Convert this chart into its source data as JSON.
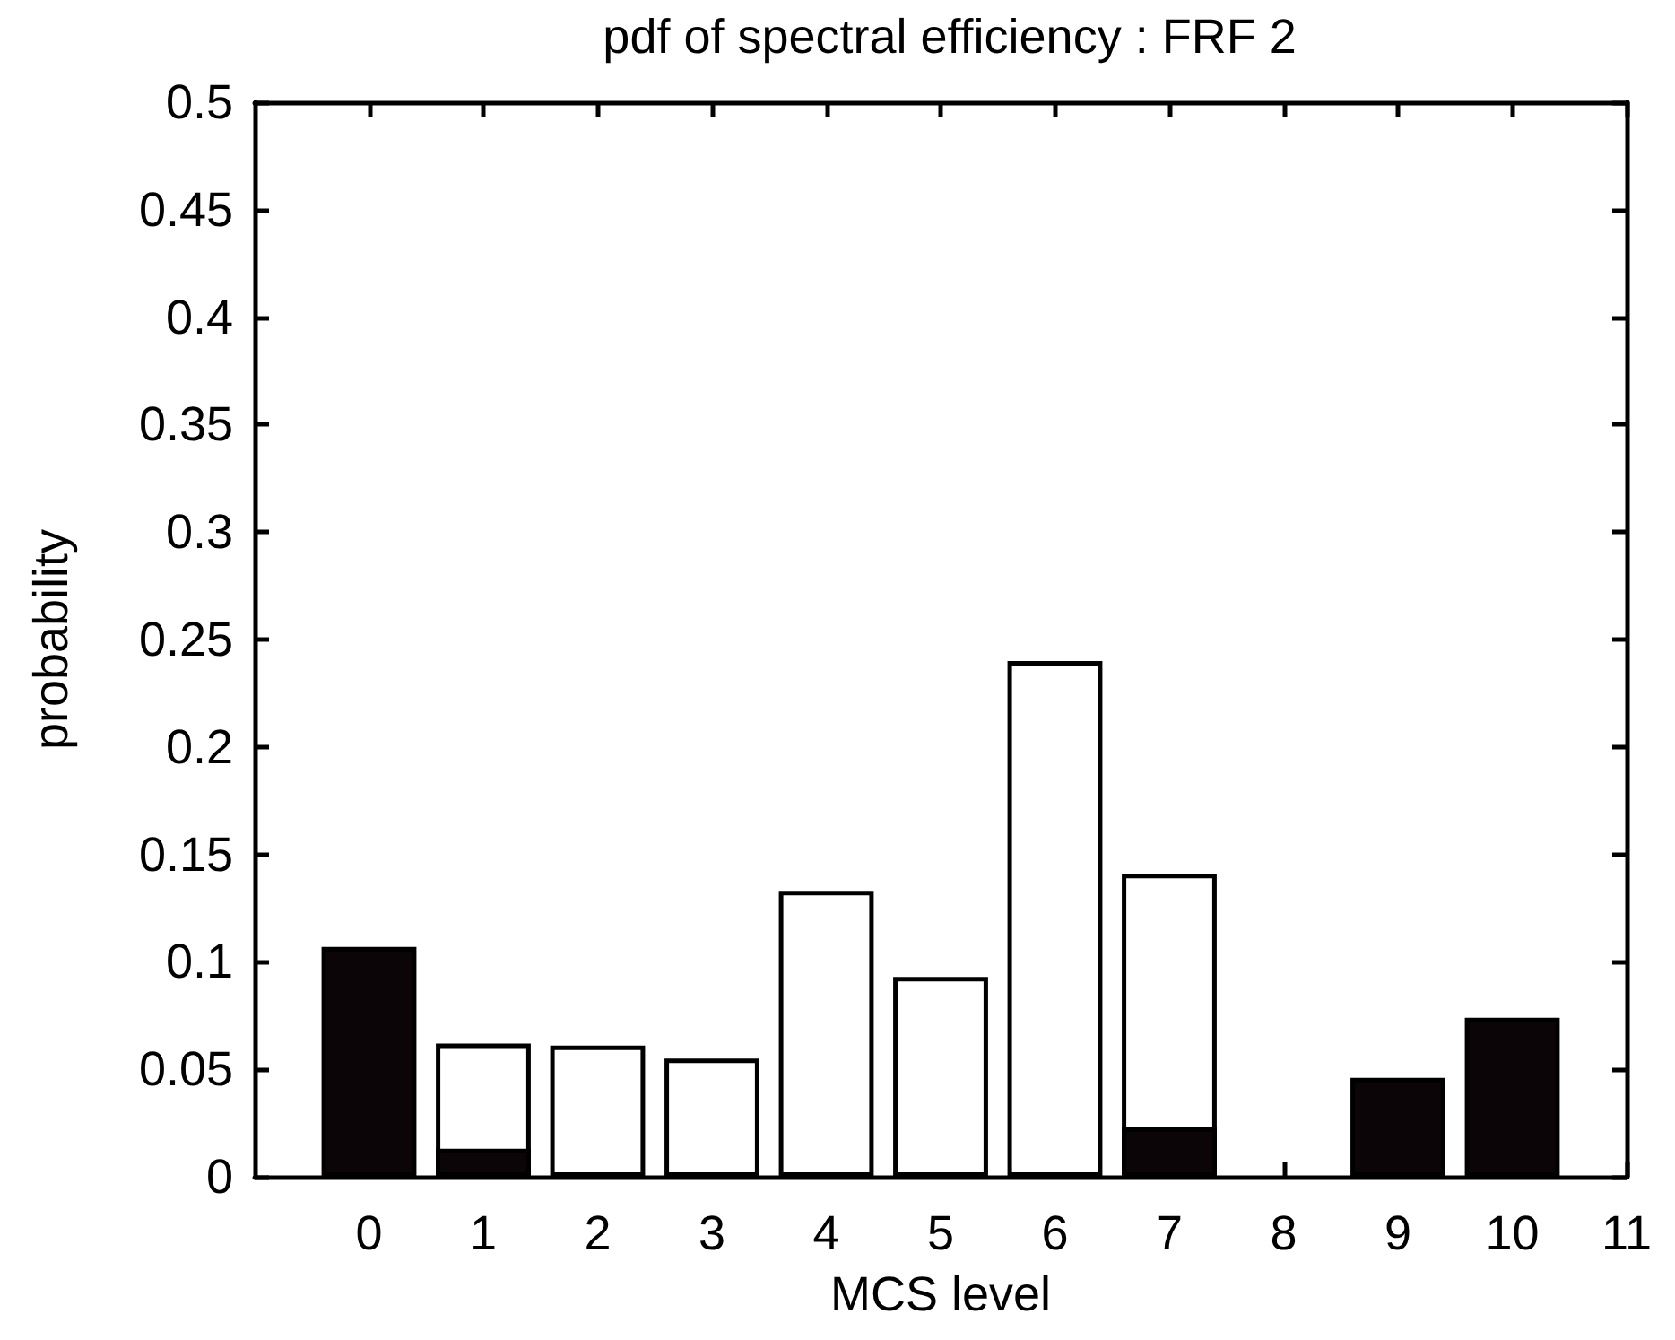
{
  "chart_data": {
    "type": "bar",
    "title": "pdf of spectral efficiency : FRF 2",
    "xlabel": "MCS level",
    "ylabel": "probability",
    "x": [
      0,
      1,
      2,
      3,
      4,
      5,
      6,
      7,
      8,
      9,
      10
    ],
    "series": [
      {
        "color": "#ffffff",
        "values": [
          null,
          0.062,
          0.061,
          0.055,
          0.133,
          0.093,
          0.24,
          0.141,
          null,
          null,
          null
        ]
      },
      {
        "color": "#0b0507",
        "values": [
          0.107,
          0.013,
          null,
          null,
          null,
          null,
          null,
          0.023,
          null,
          0.046,
          0.074
        ]
      }
    ],
    "xlim": [
      -1,
      11
    ],
    "xticks": [
      0,
      1,
      2,
      3,
      4,
      5,
      6,
      7,
      8,
      9,
      10,
      11
    ],
    "ylim": [
      0,
      0.5
    ],
    "yticks": [
      0,
      0.05,
      0.1,
      0.15,
      0.2,
      0.25,
      0.3,
      0.35,
      0.4,
      0.45,
      0.5
    ],
    "grid": false
  }
}
